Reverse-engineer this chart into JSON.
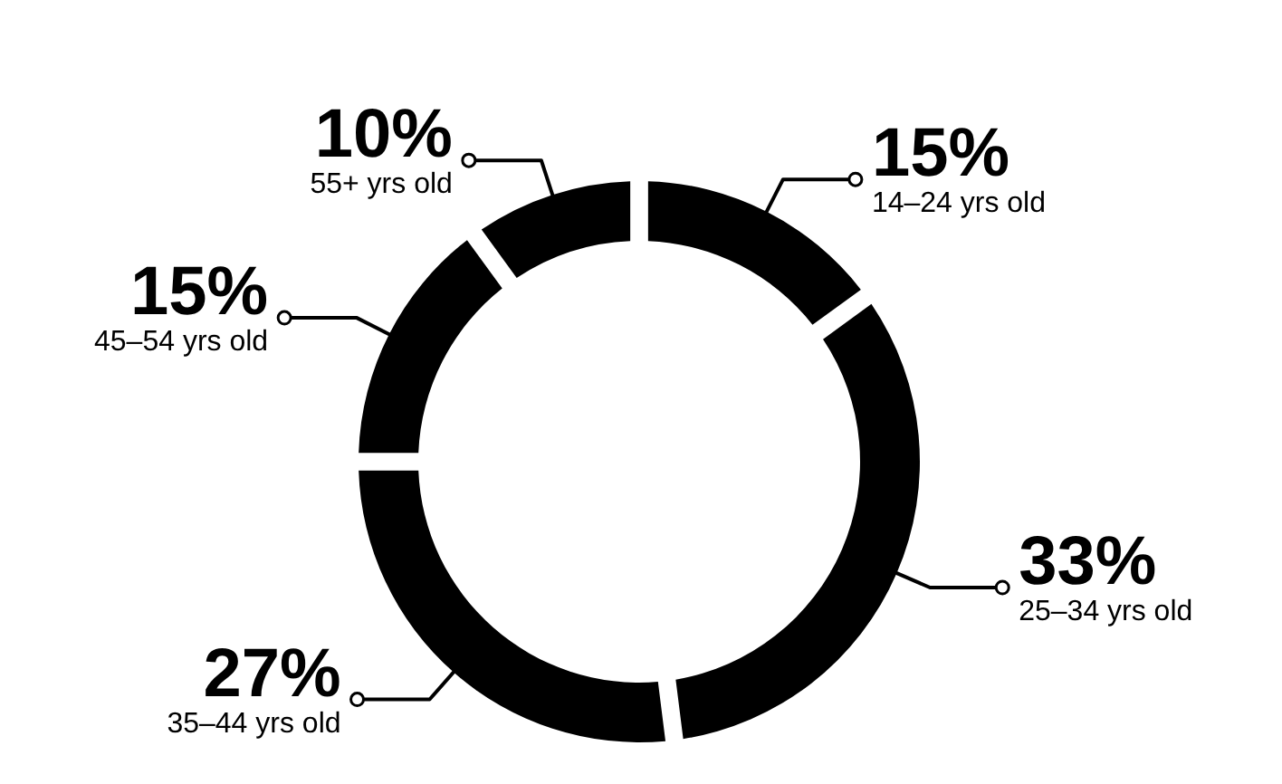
{
  "chart_data": {
    "type": "donut",
    "categories": [
      "14–24 yrs old",
      "25–34 yrs old",
      "35–44 yrs old",
      "45–54 yrs old",
      "55+ yrs old"
    ],
    "values": [
      15,
      33,
      27,
      15,
      10
    ],
    "value_labels": [
      "15%",
      "33%",
      "27%",
      "15%",
      "10%"
    ],
    "colors": [
      "#000000",
      "#000000",
      "#000000",
      "#000000",
      "#000000"
    ],
    "legend": "right"
  }
}
